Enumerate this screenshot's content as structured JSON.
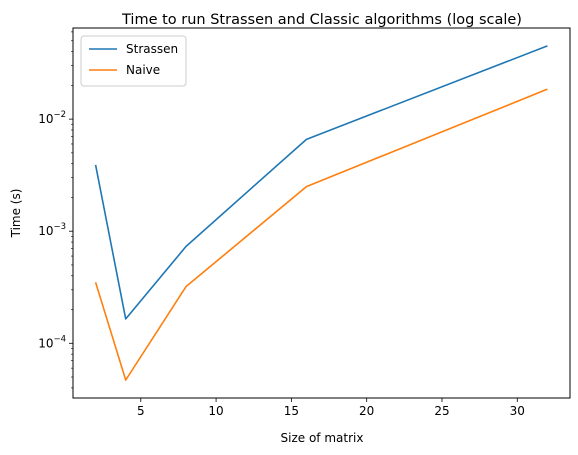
{
  "chart_data": {
    "type": "line",
    "title": "Time to run Strassen and Classic algorithms (log scale)",
    "xlabel": "Size of matrix",
    "ylabel": "Time (s)",
    "yscale": "log",
    "xlim": [
      0.5,
      33.5
    ],
    "ylim": [
      3.25e-05,
      0.065
    ],
    "x_ticks": [
      5,
      10,
      15,
      20,
      25,
      30
    ],
    "x_tick_labels": [
      "5",
      "10",
      "15",
      "20",
      "25",
      "30"
    ],
    "y_major_ticks": [
      0.0001,
      0.001,
      0.01
    ],
    "y_major_labels": [
      {
        "base": "10",
        "exp": "−4"
      },
      {
        "base": "10",
        "exp": "−3"
      },
      {
        "base": "10",
        "exp": "−2"
      }
    ],
    "legend_position": "upper-left",
    "x": [
      2,
      4,
      8,
      16,
      32
    ],
    "series": [
      {
        "name": "Strassen",
        "color": "#1f77b4",
        "values": [
          0.0039,
          0.000165,
          0.00073,
          0.0066,
          0.045
        ]
      },
      {
        "name": "Naive",
        "color": "#ff7f0e",
        "values": [
          0.00035,
          4.7e-05,
          0.00032,
          0.0025,
          0.0185
        ]
      }
    ]
  }
}
